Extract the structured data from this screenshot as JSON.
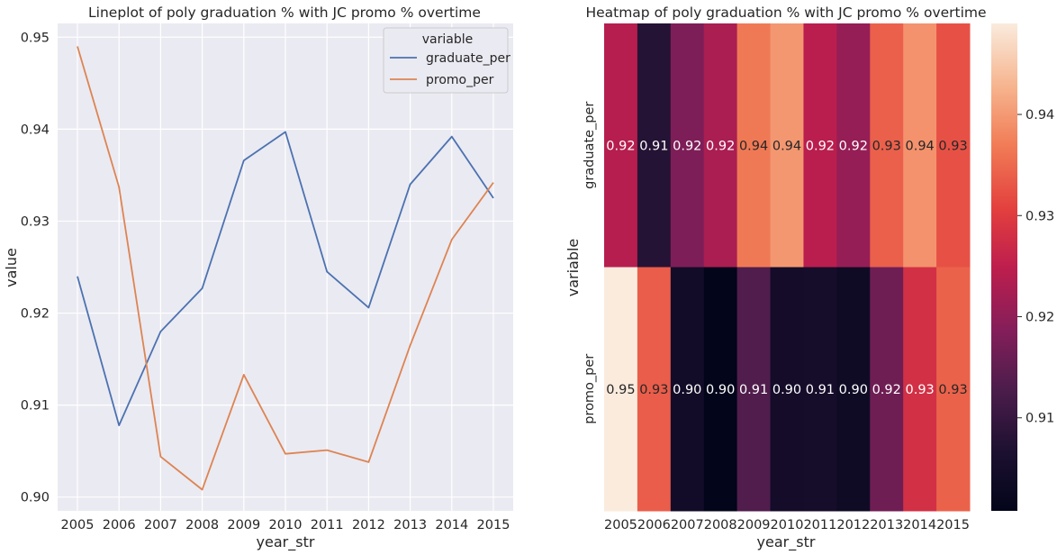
{
  "chart_data": [
    {
      "type": "line",
      "title": "Lineplot of poly graduation % with JC promo % overtime",
      "xlabel": "year_str",
      "ylabel": "value",
      "categories": [
        "2005",
        "2006",
        "2007",
        "2008",
        "2009",
        "2010",
        "2011",
        "2012",
        "2013",
        "2014",
        "2015"
      ],
      "ylim": [
        0.8985,
        0.9515
      ],
      "yticks": [
        "0.90",
        "0.91",
        "0.92",
        "0.93",
        "0.94",
        "0.95"
      ],
      "grid": true,
      "legend": {
        "title": "variable",
        "position": "top-right"
      },
      "series": [
        {
          "name": "graduate_per",
          "color": "#4c72b0",
          "values": [
            0.924,
            0.9078,
            0.918,
            0.9227,
            0.9366,
            0.9397,
            0.9245,
            0.9206,
            0.934,
            0.9392,
            0.9325
          ]
        },
        {
          "name": "promo_per",
          "color": "#dd8452",
          "values": [
            0.949,
            0.9337,
            0.9044,
            0.9008,
            0.9133,
            0.9047,
            0.9051,
            0.9038,
            0.9165,
            0.928,
            0.9342
          ]
        }
      ]
    },
    {
      "type": "heatmap",
      "title": "Heatmap of poly graduation % with JC promo % overtime",
      "xlabel": "year_str",
      "ylabel": "variable",
      "categories": [
        "2005",
        "2006",
        "2007",
        "2008",
        "2009",
        "2010",
        "2011",
        "2012",
        "2013",
        "2014",
        "2015"
      ],
      "rows": [
        {
          "name": "graduate_per",
          "values": [
            0.924,
            0.9078,
            0.918,
            0.9227,
            0.9366,
            0.9397,
            0.9245,
            0.9206,
            0.934,
            0.9392,
            0.9325
          ],
          "labels": [
            "0.92",
            "0.91",
            "0.92",
            "0.92",
            "0.94",
            "0.94",
            "0.92",
            "0.92",
            "0.93",
            "0.94",
            "0.93"
          ]
        },
        {
          "name": "promo_per",
          "values": [
            0.949,
            0.9337,
            0.9044,
            0.9008,
            0.9133,
            0.9047,
            0.9051,
            0.9038,
            0.9165,
            0.928,
            0.9342
          ],
          "labels": [
            "0.95",
            "0.93",
            "0.90",
            "0.90",
            "0.91",
            "0.90",
            "0.91",
            "0.90",
            "0.92",
            "0.93",
            "0.93"
          ]
        }
      ],
      "colorbar": {
        "range": [
          0.9008,
          0.949
        ],
        "ticks": [
          "0.91",
          "0.92",
          "0.93",
          "0.94"
        ],
        "colormap": "rocket"
      }
    }
  ]
}
